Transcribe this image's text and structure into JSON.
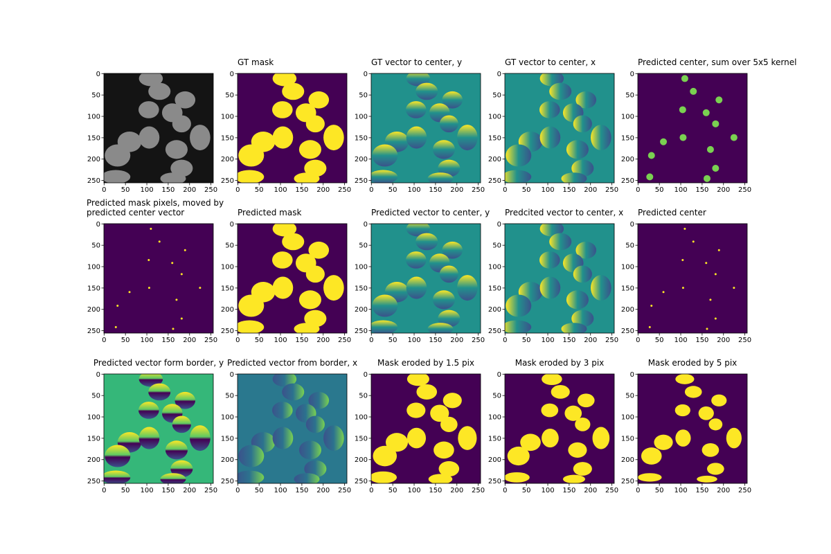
{
  "chart_data": [
    {
      "type": "image",
      "xlim": [
        -0.5,
        255.5
      ],
      "ylim": [
        255.5,
        -0.5
      ],
      "xticks": [
        0,
        50,
        100,
        150,
        200,
        250
      ],
      "yticks": [
        0,
        50,
        100,
        150,
        200,
        250
      ]
    },
    {
      "type": "image",
      "title": "GT mask",
      "xlim": [
        -0.5,
        255.5
      ],
      "ylim": [
        255.5,
        -0.5
      ],
      "xticks": [
        0,
        50,
        100,
        150,
        200,
        250
      ],
      "yticks": [
        0,
        50,
        100,
        150,
        200,
        250
      ]
    },
    {
      "type": "image",
      "title": "GT vector to center, y",
      "xlim": [
        -0.5,
        255.5
      ],
      "ylim": [
        255.5,
        -0.5
      ],
      "xticks": [
        0,
        50,
        100,
        150,
        200,
        250
      ],
      "yticks": [
        0,
        50,
        100,
        150,
        200,
        250
      ]
    },
    {
      "type": "image",
      "title": "GT vector to center, x",
      "xlim": [
        -0.5,
        255.5
      ],
      "ylim": [
        255.5,
        -0.5
      ],
      "xticks": [
        0,
        50,
        100,
        150,
        200,
        250
      ],
      "yticks": [
        0,
        50,
        100,
        150,
        200,
        250
      ]
    },
    {
      "type": "image",
      "title": "Predicted center, sum over 5x5 kernel",
      "xlim": [
        -0.5,
        255.5
      ],
      "ylim": [
        255.5,
        -0.5
      ],
      "xticks": [
        0,
        50,
        100,
        150,
        200,
        250
      ],
      "yticks": [
        0,
        50,
        100,
        150,
        200,
        250
      ]
    },
    {
      "type": "image",
      "title": "Predicted mask pixels, moved by\npredicted center vector",
      "xlim": [
        -0.5,
        255.5
      ],
      "ylim": [
        255.5,
        -0.5
      ],
      "xticks": [
        0,
        50,
        100,
        150,
        200,
        250
      ],
      "yticks": [
        0,
        50,
        100,
        150,
        200,
        250
      ]
    },
    {
      "type": "image",
      "title": "Predicted mask",
      "xlim": [
        -0.5,
        255.5
      ],
      "ylim": [
        255.5,
        -0.5
      ],
      "xticks": [
        0,
        50,
        100,
        150,
        200,
        250
      ],
      "yticks": [
        0,
        50,
        100,
        150,
        200,
        250
      ]
    },
    {
      "type": "image",
      "title": "Predicted vector to center, y",
      "xlim": [
        -0.5,
        255.5
      ],
      "ylim": [
        255.5,
        -0.5
      ],
      "xticks": [
        0,
        50,
        100,
        150,
        200,
        250
      ],
      "yticks": [
        0,
        50,
        100,
        150,
        200,
        250
      ]
    },
    {
      "type": "image",
      "title": "Predcited vector to center, x",
      "xlim": [
        -0.5,
        255.5
      ],
      "ylim": [
        255.5,
        -0.5
      ],
      "xticks": [
        0,
        50,
        100,
        150,
        200,
        250
      ],
      "yticks": [
        0,
        50,
        100,
        150,
        200,
        250
      ]
    },
    {
      "type": "image",
      "title": "Predicted center",
      "xlim": [
        -0.5,
        255.5
      ],
      "ylim": [
        255.5,
        -0.5
      ],
      "xticks": [
        0,
        50,
        100,
        150,
        200,
        250
      ],
      "yticks": [
        0,
        50,
        100,
        150,
        200,
        250
      ]
    },
    {
      "type": "image",
      "title": "Predicted vector form border, y",
      "xlim": [
        -0.5,
        255.5
      ],
      "ylim": [
        255.5,
        -0.5
      ],
      "xticks": [
        0,
        50,
        100,
        150,
        200,
        250
      ],
      "yticks": [
        0,
        50,
        100,
        150,
        200,
        250
      ]
    },
    {
      "type": "image",
      "title": "Predicted vector from border, x",
      "xlim": [
        -0.5,
        255.5
      ],
      "ylim": [
        255.5,
        -0.5
      ],
      "xticks": [
        0,
        50,
        100,
        150,
        200,
        250
      ],
      "yticks": [
        0,
        50,
        100,
        150,
        200,
        250
      ]
    },
    {
      "type": "image",
      "title": "Mask eroded by 1.5 pix",
      "xlim": [
        -0.5,
        255.5
      ],
      "ylim": [
        255.5,
        -0.5
      ],
      "xticks": [
        0,
        50,
        100,
        150,
        200,
        250
      ],
      "yticks": [
        0,
        50,
        100,
        150,
        200,
        250
      ]
    },
    {
      "type": "image",
      "title": "Mask eroded by 3 pix",
      "xlim": [
        -0.5,
        255.5
      ],
      "ylim": [
        255.5,
        -0.5
      ],
      "xticks": [
        0,
        50,
        100,
        150,
        200,
        250
      ],
      "yticks": [
        0,
        50,
        100,
        150,
        200,
        250
      ]
    },
    {
      "type": "image",
      "title": "Mask eroded by 5 pix",
      "xlim": [
        -0.5,
        255.5
      ],
      "ylim": [
        255.5,
        -0.5
      ],
      "xticks": [
        0,
        50,
        100,
        150,
        200,
        250
      ],
      "yticks": [
        0,
        50,
        100,
        150,
        200,
        250
      ]
    }
  ]
}
